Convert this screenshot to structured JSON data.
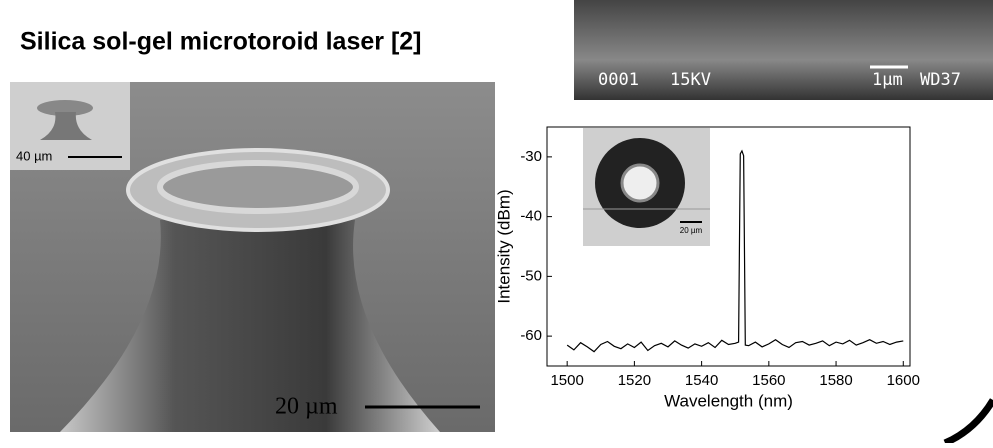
{
  "title": "Silica sol-gel microtoroid laser [2]",
  "sem_top": {
    "labels": [
      "0001",
      "15KV",
      "1µm",
      "WD37"
    ]
  },
  "sem_left": {
    "inset_scale": "40 µm",
    "scale": "20 µm"
  },
  "chart_data": {
    "type": "line",
    "inset_scale": "20 µm",
    "x_label": "Wavelength (nm)",
    "y_label": "Intensity (dBm)",
    "x": [
      1500,
      1502,
      1504,
      1506,
      1508,
      1510,
      1512,
      1514,
      1516,
      1518,
      1520,
      1522,
      1524,
      1526,
      1528,
      1530,
      1532,
      1534,
      1536,
      1538,
      1540,
      1542,
      1544,
      1546,
      1548,
      1550,
      1551,
      1551.5,
      1552,
      1552.5,
      1553,
      1554,
      1556,
      1558,
      1560,
      1562,
      1564,
      1566,
      1568,
      1570,
      1572,
      1574,
      1576,
      1578,
      1580,
      1582,
      1584,
      1586,
      1588,
      1590,
      1592,
      1594,
      1596,
      1598,
      1600
    ],
    "series": [
      {
        "color": "#000000",
        "values": [
          -61.5,
          -62.3,
          -61.1,
          -61.8,
          -62.6,
          -61.4,
          -60.9,
          -61.7,
          -62.1,
          -61.3,
          -61.9,
          -61.0,
          -62.4,
          -61.6,
          -61.2,
          -61.8,
          -60.8,
          -61.5,
          -62.0,
          -61.3,
          -61.7,
          -61.1,
          -61.9,
          -60.7,
          -61.4,
          -61.2,
          -61,
          -29.5,
          -29,
          -29.8,
          -61.5,
          -61.6,
          -61.0,
          -61.8,
          -61.3,
          -60.6,
          -61.4,
          -61.9,
          -61.1,
          -60.9,
          -61.5,
          -61.2,
          -60.8,
          -61.6,
          -61.0,
          -61.3,
          -60.7,
          -61.5,
          -61.1,
          -60.6,
          -61.2,
          -60.9,
          -61.4,
          -61.0,
          -60.8
        ]
      }
    ],
    "xlim": [
      1494,
      1602
    ],
    "ylim": [
      -65,
      -25
    ],
    "xticks": [
      1500,
      1520,
      1540,
      1560,
      1580,
      1600
    ],
    "yticks": [
      -30,
      -40,
      -50,
      -60
    ]
  }
}
